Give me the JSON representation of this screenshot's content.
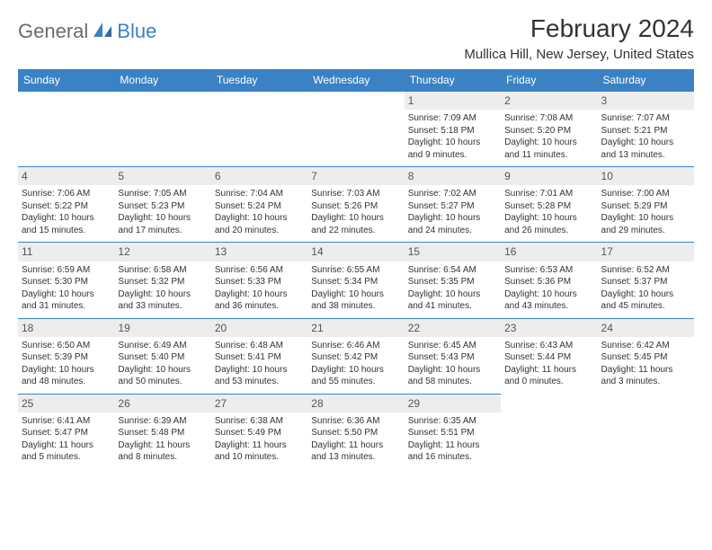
{
  "logo": {
    "part1": "General",
    "part2": "Blue"
  },
  "title": "February 2024",
  "location": "Mullica Hill, New Jersey, United States",
  "colors": {
    "header_bg": "#3a82c4",
    "header_text": "#ffffff",
    "date_bg": "#ededed",
    "border": "#3a82c4",
    "text": "#333333",
    "logo_gray": "#6b6b6b",
    "logo_blue": "#3a82c4"
  },
  "day_headers": [
    "Sunday",
    "Monday",
    "Tuesday",
    "Wednesday",
    "Thursday",
    "Friday",
    "Saturday"
  ],
  "weeks": [
    [
      null,
      null,
      null,
      null,
      {
        "n": "1",
        "sr": "Sunrise: 7:09 AM",
        "ss": "Sunset: 5:18 PM",
        "d1": "Daylight: 10 hours",
        "d2": "and 9 minutes."
      },
      {
        "n": "2",
        "sr": "Sunrise: 7:08 AM",
        "ss": "Sunset: 5:20 PM",
        "d1": "Daylight: 10 hours",
        "d2": "and 11 minutes."
      },
      {
        "n": "3",
        "sr": "Sunrise: 7:07 AM",
        "ss": "Sunset: 5:21 PM",
        "d1": "Daylight: 10 hours",
        "d2": "and 13 minutes."
      }
    ],
    [
      {
        "n": "4",
        "sr": "Sunrise: 7:06 AM",
        "ss": "Sunset: 5:22 PM",
        "d1": "Daylight: 10 hours",
        "d2": "and 15 minutes."
      },
      {
        "n": "5",
        "sr": "Sunrise: 7:05 AM",
        "ss": "Sunset: 5:23 PM",
        "d1": "Daylight: 10 hours",
        "d2": "and 17 minutes."
      },
      {
        "n": "6",
        "sr": "Sunrise: 7:04 AM",
        "ss": "Sunset: 5:24 PM",
        "d1": "Daylight: 10 hours",
        "d2": "and 20 minutes."
      },
      {
        "n": "7",
        "sr": "Sunrise: 7:03 AM",
        "ss": "Sunset: 5:26 PM",
        "d1": "Daylight: 10 hours",
        "d2": "and 22 minutes."
      },
      {
        "n": "8",
        "sr": "Sunrise: 7:02 AM",
        "ss": "Sunset: 5:27 PM",
        "d1": "Daylight: 10 hours",
        "d2": "and 24 minutes."
      },
      {
        "n": "9",
        "sr": "Sunrise: 7:01 AM",
        "ss": "Sunset: 5:28 PM",
        "d1": "Daylight: 10 hours",
        "d2": "and 26 minutes."
      },
      {
        "n": "10",
        "sr": "Sunrise: 7:00 AM",
        "ss": "Sunset: 5:29 PM",
        "d1": "Daylight: 10 hours",
        "d2": "and 29 minutes."
      }
    ],
    [
      {
        "n": "11",
        "sr": "Sunrise: 6:59 AM",
        "ss": "Sunset: 5:30 PM",
        "d1": "Daylight: 10 hours",
        "d2": "and 31 minutes."
      },
      {
        "n": "12",
        "sr": "Sunrise: 6:58 AM",
        "ss": "Sunset: 5:32 PM",
        "d1": "Daylight: 10 hours",
        "d2": "and 33 minutes."
      },
      {
        "n": "13",
        "sr": "Sunrise: 6:56 AM",
        "ss": "Sunset: 5:33 PM",
        "d1": "Daylight: 10 hours",
        "d2": "and 36 minutes."
      },
      {
        "n": "14",
        "sr": "Sunrise: 6:55 AM",
        "ss": "Sunset: 5:34 PM",
        "d1": "Daylight: 10 hours",
        "d2": "and 38 minutes."
      },
      {
        "n": "15",
        "sr": "Sunrise: 6:54 AM",
        "ss": "Sunset: 5:35 PM",
        "d1": "Daylight: 10 hours",
        "d2": "and 41 minutes."
      },
      {
        "n": "16",
        "sr": "Sunrise: 6:53 AM",
        "ss": "Sunset: 5:36 PM",
        "d1": "Daylight: 10 hours",
        "d2": "and 43 minutes."
      },
      {
        "n": "17",
        "sr": "Sunrise: 6:52 AM",
        "ss": "Sunset: 5:37 PM",
        "d1": "Daylight: 10 hours",
        "d2": "and 45 minutes."
      }
    ],
    [
      {
        "n": "18",
        "sr": "Sunrise: 6:50 AM",
        "ss": "Sunset: 5:39 PM",
        "d1": "Daylight: 10 hours",
        "d2": "and 48 minutes."
      },
      {
        "n": "19",
        "sr": "Sunrise: 6:49 AM",
        "ss": "Sunset: 5:40 PM",
        "d1": "Daylight: 10 hours",
        "d2": "and 50 minutes."
      },
      {
        "n": "20",
        "sr": "Sunrise: 6:48 AM",
        "ss": "Sunset: 5:41 PM",
        "d1": "Daylight: 10 hours",
        "d2": "and 53 minutes."
      },
      {
        "n": "21",
        "sr": "Sunrise: 6:46 AM",
        "ss": "Sunset: 5:42 PM",
        "d1": "Daylight: 10 hours",
        "d2": "and 55 minutes."
      },
      {
        "n": "22",
        "sr": "Sunrise: 6:45 AM",
        "ss": "Sunset: 5:43 PM",
        "d1": "Daylight: 10 hours",
        "d2": "and 58 minutes."
      },
      {
        "n": "23",
        "sr": "Sunrise: 6:43 AM",
        "ss": "Sunset: 5:44 PM",
        "d1": "Daylight: 11 hours",
        "d2": "and 0 minutes."
      },
      {
        "n": "24",
        "sr": "Sunrise: 6:42 AM",
        "ss": "Sunset: 5:45 PM",
        "d1": "Daylight: 11 hours",
        "d2": "and 3 minutes."
      }
    ],
    [
      {
        "n": "25",
        "sr": "Sunrise: 6:41 AM",
        "ss": "Sunset: 5:47 PM",
        "d1": "Daylight: 11 hours",
        "d2": "and 5 minutes."
      },
      {
        "n": "26",
        "sr": "Sunrise: 6:39 AM",
        "ss": "Sunset: 5:48 PM",
        "d1": "Daylight: 11 hours",
        "d2": "and 8 minutes."
      },
      {
        "n": "27",
        "sr": "Sunrise: 6:38 AM",
        "ss": "Sunset: 5:49 PM",
        "d1": "Daylight: 11 hours",
        "d2": "and 10 minutes."
      },
      {
        "n": "28",
        "sr": "Sunrise: 6:36 AM",
        "ss": "Sunset: 5:50 PM",
        "d1": "Daylight: 11 hours",
        "d2": "and 13 minutes."
      },
      {
        "n": "29",
        "sr": "Sunrise: 6:35 AM",
        "ss": "Sunset: 5:51 PM",
        "d1": "Daylight: 11 hours",
        "d2": "and 16 minutes."
      },
      null,
      null
    ]
  ]
}
